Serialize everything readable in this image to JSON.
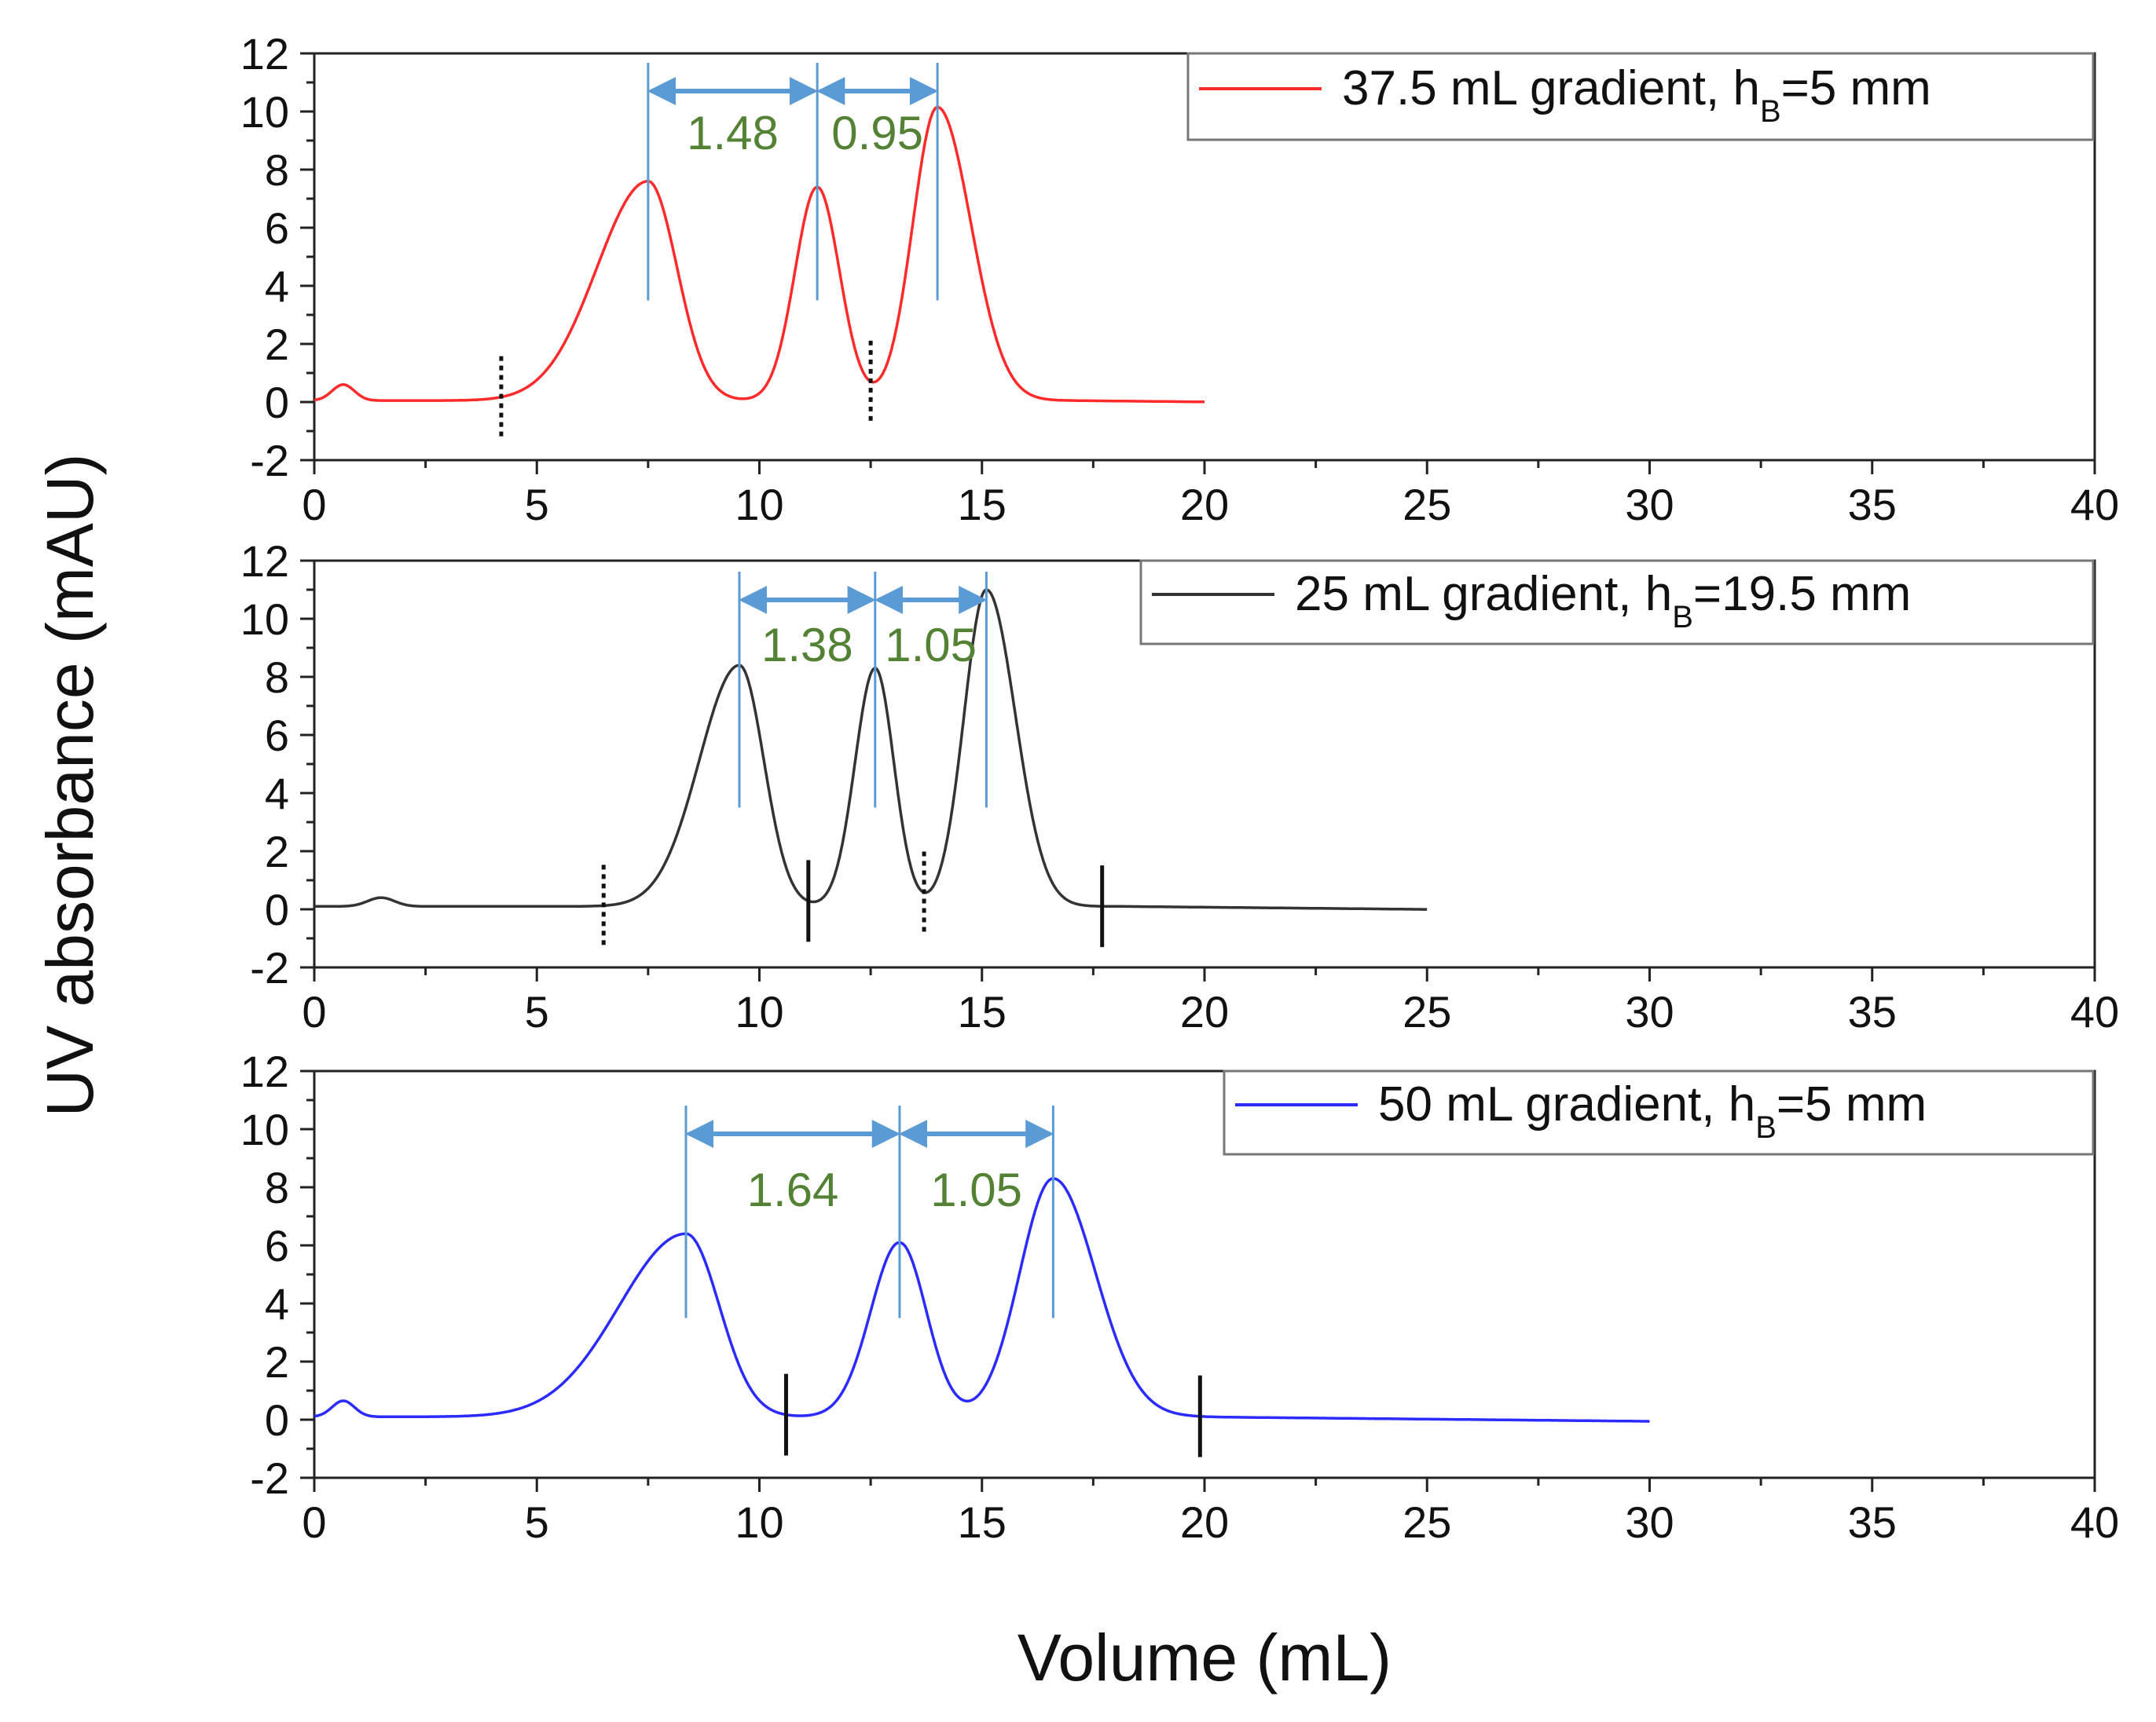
{
  "y_axis_title": "UV absorbance (mAU)",
  "x_axis_title": "Volume (mL)",
  "annotation_color": "#5b9bd5",
  "ratio_label_color": "#548235",
  "chart_data": [
    {
      "type": "line",
      "series_name": "37.5 mL gradient",
      "legend": {
        "main": "37.5 mL gradient, h",
        "sub": "B",
        "tail": "=5 mm"
      },
      "color": "#ff2a2a",
      "xlim": [
        0,
        40
      ],
      "ylim": [
        -2,
        12
      ],
      "x_ticks": [
        0,
        5,
        10,
        15,
        20,
        25,
        30,
        35,
        40
      ],
      "y_ticks": [
        -2,
        0,
        2,
        4,
        6,
        8,
        10,
        12
      ],
      "data_range": [
        0,
        20
      ],
      "baseline": 0.05,
      "shoulder": {
        "x": 0.65,
        "height": 0.55,
        "width": 0.25
      },
      "peaks": [
        {
          "x": 7.5,
          "height": 7.55,
          "sigma_left": 1.15,
          "sigma_right": 0.65
        },
        {
          "x": 11.3,
          "height": 7.35,
          "sigma_left": 0.5,
          "sigma_right": 0.5
        },
        {
          "x": 14.0,
          "height": 10.1,
          "sigma_left": 0.55,
          "sigma_right": 0.75
        }
      ],
      "peak_positions": [
        7.5,
        11.3,
        14.0
      ],
      "ratio_labels": [
        "1.48",
        "0.95"
      ],
      "dotted_markers": [
        4.2,
        12.5
      ],
      "solid_markers": []
    },
    {
      "type": "line",
      "series_name": "25 mL gradient",
      "legend": {
        "main": "25 mL gradient, h",
        "sub": "B",
        "tail": "=19.5 mm"
      },
      "color": "#333333",
      "xlim": [
        0,
        40
      ],
      "ylim": [
        -2,
        12
      ],
      "x_ticks": [
        0,
        5,
        10,
        15,
        20,
        25,
        30,
        35,
        40
      ],
      "y_ticks": [
        -2,
        0,
        2,
        4,
        6,
        8,
        10,
        12
      ],
      "data_range": [
        0,
        25
      ],
      "baseline": 0.1,
      "shoulder": {
        "x": 1.5,
        "height": 0.3,
        "width": 0.3
      },
      "peaks": [
        {
          "x": 9.55,
          "height": 8.3,
          "sigma_left": 0.9,
          "sigma_right": 0.55
        },
        {
          "x": 12.6,
          "height": 8.2,
          "sigma_left": 0.45,
          "sigma_right": 0.42
        },
        {
          "x": 15.1,
          "height": 10.9,
          "sigma_left": 0.5,
          "sigma_right": 0.65
        }
      ],
      "peak_positions": [
        9.55,
        12.6,
        15.1
      ],
      "ratio_labels": [
        "1.38",
        "1.05"
      ],
      "dotted_markers": [
        6.5,
        13.7
      ],
      "solid_markers": [
        11.1,
        17.7
      ]
    },
    {
      "type": "line",
      "series_name": "50 mL gradient",
      "legend": {
        "main": "50 mL gradient, h",
        "sub": "B",
        "tail": "=5 mm"
      },
      "color": "#2b2bff",
      "xlim": [
        0,
        40
      ],
      "ylim": [
        -2,
        12
      ],
      "x_ticks": [
        0,
        5,
        10,
        15,
        20,
        25,
        30,
        35,
        40
      ],
      "y_ticks": [
        -2,
        0,
        2,
        4,
        6,
        8,
        10,
        12
      ],
      "data_range": [
        0,
        30
      ],
      "baseline": 0.1,
      "shoulder": {
        "x": 0.65,
        "height": 0.55,
        "width": 0.25
      },
      "peaks": [
        {
          "x": 8.35,
          "height": 6.3,
          "sigma_left": 1.5,
          "sigma_right": 0.75
        },
        {
          "x": 13.15,
          "height": 6.0,
          "sigma_left": 0.65,
          "sigma_right": 0.6
        },
        {
          "x": 16.6,
          "height": 8.2,
          "sigma_left": 0.75,
          "sigma_right": 0.95
        }
      ],
      "peak_positions": [
        8.35,
        13.15,
        16.6
      ],
      "ratio_labels": [
        "1.64",
        "1.05"
      ],
      "dotted_markers": [],
      "solid_markers": [
        10.6,
        19.9
      ]
    }
  ]
}
